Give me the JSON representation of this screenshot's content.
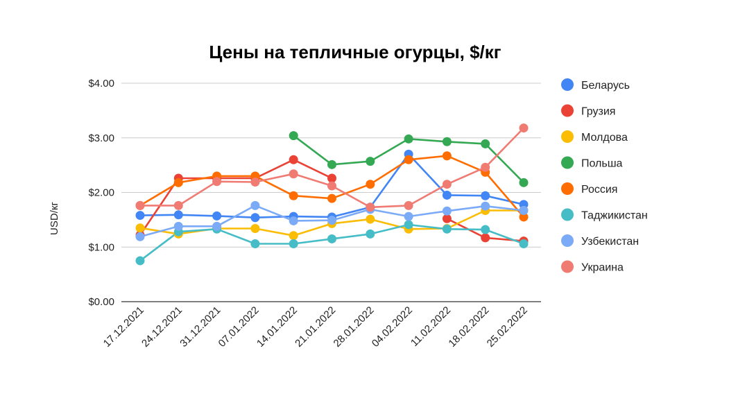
{
  "chart_data": {
    "type": "line",
    "title": "Цены на тепличные огурцы, $/кг",
    "ylabel": "USD/кг",
    "xlabel": "",
    "ylim": [
      0,
      4
    ],
    "yticks": [
      "$0.00",
      "$1.00",
      "$2.00",
      "$3.00",
      "$4.00"
    ],
    "grid": true,
    "legend_position": "right",
    "categories": [
      "17.12.2021",
      "24.12.2021",
      "31.12.2021",
      "07.01.2022",
      "14.01.2022",
      "21.01.2022",
      "28.01.2022",
      "04.02.2022",
      "11.02.2022",
      "18.02.2022",
      "25.02.2022"
    ],
    "series": [
      {
        "name": "Беларусь",
        "color": "#4285F4",
        "values": [
          1.58,
          1.59,
          1.57,
          1.54,
          1.56,
          1.55,
          1.73,
          2.7,
          1.95,
          1.94,
          1.78
        ]
      },
      {
        "name": "Грузия",
        "color": "#EA4335",
        "values": [
          1.22,
          2.26,
          2.26,
          2.26,
          2.6,
          2.26,
          null,
          null,
          1.52,
          1.17,
          1.11
        ]
      },
      {
        "name": "Молдова",
        "color": "#FBBC04",
        "values": [
          1.35,
          1.24,
          1.34,
          1.34,
          1.21,
          1.43,
          1.51,
          1.33,
          1.34,
          1.67,
          1.67
        ]
      },
      {
        "name": "Польша",
        "color": "#34A853",
        "values": [
          null,
          null,
          null,
          null,
          3.04,
          2.51,
          2.57,
          2.98,
          2.93,
          2.89,
          2.18
        ]
      },
      {
        "name": "Россия",
        "color": "#FF6D01",
        "values": [
          1.76,
          2.18,
          2.3,
          2.3,
          1.94,
          1.89,
          2.15,
          2.6,
          2.67,
          2.37,
          1.55
        ]
      },
      {
        "name": "Таджикистан",
        "color": "#46BDC6",
        "values": [
          0.75,
          1.28,
          1.33,
          1.06,
          1.06,
          1.15,
          1.24,
          1.41,
          1.33,
          1.32,
          1.06
        ]
      },
      {
        "name": "Узбекистан",
        "color": "#7BAAF7",
        "values": [
          1.19,
          1.38,
          1.38,
          1.76,
          1.48,
          1.49,
          1.69,
          1.56,
          1.66,
          1.75,
          1.67
        ]
      },
      {
        "name": "Украина",
        "color": "#F07B72",
        "values": [
          1.76,
          1.76,
          2.2,
          2.19,
          2.34,
          2.12,
          1.73,
          1.76,
          2.15,
          2.46,
          3.18
        ]
      }
    ]
  }
}
